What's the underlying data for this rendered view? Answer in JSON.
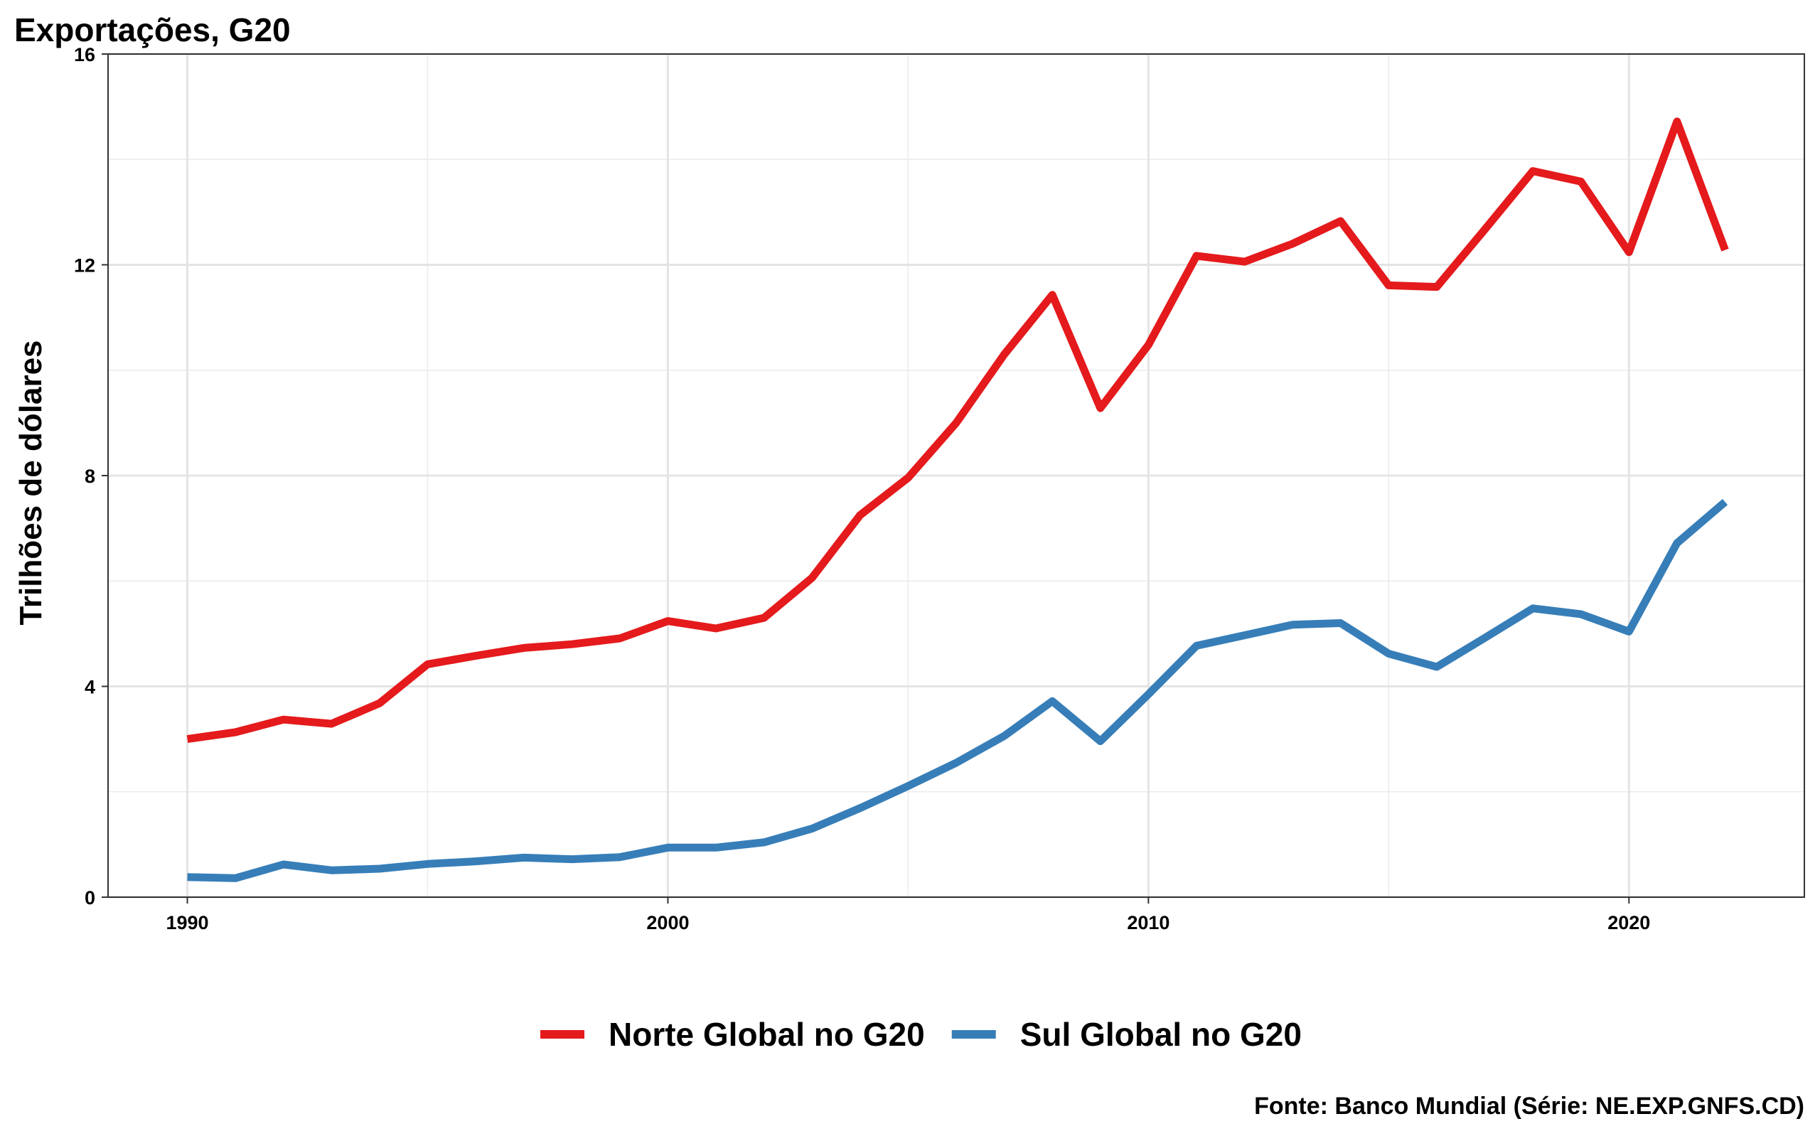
{
  "chart_data": {
    "type": "line",
    "title": "Exportações, G20",
    "xlabel": "",
    "ylabel": "Trilhões de dólares",
    "caption": "Fonte: Banco Mundial (Série: NE.EXP.GNFS.CD)",
    "x": [
      1990,
      1991,
      1992,
      1993,
      1994,
      1995,
      1996,
      1997,
      1998,
      1999,
      2000,
      2001,
      2002,
      2003,
      2004,
      2005,
      2006,
      2007,
      2008,
      2009,
      2010,
      2011,
      2012,
      2013,
      2014,
      2015,
      2016,
      2017,
      2018,
      2019,
      2020,
      2021,
      2022
    ],
    "xticks": [
      1990,
      2000,
      2010,
      2020
    ],
    "tick_labels_x": [
      "1990",
      "2000",
      "2010",
      "2020"
    ],
    "yticks": [
      0,
      4,
      8,
      12,
      16
    ],
    "tick_labels_y": [
      "0",
      "4",
      "8",
      "12",
      "16"
    ],
    "xlim": [
      1988.35,
      2023.65
    ],
    "ylim": [
      0,
      16
    ],
    "grid": true,
    "legend_position": "bottom",
    "series": [
      {
        "name": "Norte Global no G20",
        "color": "#E41A1C",
        "values": [
          3.0,
          3.13,
          3.37,
          3.29,
          3.68,
          4.42,
          4.58,
          4.73,
          4.8,
          4.91,
          5.24,
          5.1,
          5.3,
          6.06,
          7.25,
          7.96,
          9.0,
          10.3,
          11.43,
          9.28,
          10.48,
          12.17,
          12.06,
          12.4,
          12.83,
          11.61,
          11.58,
          12.67,
          13.78,
          13.58,
          12.24,
          14.72,
          12.28
        ]
      },
      {
        "name": "Sul Global no G20",
        "color": "#377EB8",
        "values": [
          0.38,
          0.36,
          0.62,
          0.51,
          0.54,
          0.63,
          0.68,
          0.75,
          0.72,
          0.76,
          0.94,
          0.94,
          1.04,
          1.3,
          1.69,
          2.11,
          2.55,
          3.06,
          3.72,
          2.96,
          3.85,
          4.77,
          4.97,
          5.17,
          5.2,
          4.62,
          4.37,
          4.92,
          5.48,
          5.37,
          5.04,
          6.72,
          7.5
        ]
      }
    ]
  }
}
